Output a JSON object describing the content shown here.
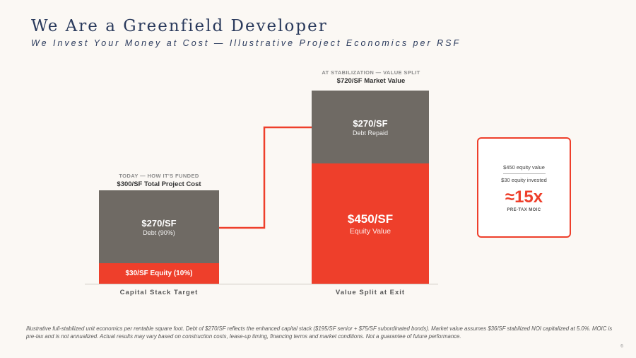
{
  "header": {
    "title": "We Are a Greenfield Developer",
    "subtitle": "We Invest Your Money at Cost — Illustrative Project Economics per RSF"
  },
  "left": {
    "kicker": "TODAY — HOW IT'S FUNDED",
    "heading": "$300/SF Total Project Cost",
    "debt_value": "$270/SF",
    "debt_label": "Debt (90%)",
    "equity_label": "$30/SF Equity (10%)",
    "axis_label": "Capital Stack Target"
  },
  "right": {
    "kicker": "AT STABILIZATION — VALUE SPLIT",
    "heading": "$720/SF Market Value",
    "debt_value": "$270/SF",
    "debt_label": "Debt Repaid",
    "equity_value": "$450/SF",
    "equity_label": "Equity Value",
    "axis_label": "Value Split at Exit"
  },
  "moic": {
    "numerator": "$450 equity value",
    "denominator": "$30 equity invested",
    "multiple": "≈15x",
    "label": "PRE-TAX MOIC"
  },
  "chart_data": {
    "type": "bar",
    "stacked": true,
    "categories": [
      "Capital Stack Target",
      "Value Split at Exit"
    ],
    "series": [
      {
        "name": "Debt",
        "values": [
          270,
          270
        ]
      },
      {
        "name": "Equity",
        "values": [
          30,
          450
        ]
      }
    ],
    "colors": {
      "debt": "#6f6a64",
      "equity": "#ee3f2b",
      "connector": "#ee3f2b"
    }
  },
  "footnote": "Illustrative full-stabilized unit economics per rentable square foot. Debt of $270/SF reflects the enhanced capital stack ($195/SF senior + $75/SF subordinated bonds). Market value assumes $36/SF stabilized NOI capitalized at 5.0%. MOIC is pre-tax and is not annualized. Actual results may vary based on construction costs, lease-up timing, financing terms and market conditions. Not a guarantee of future performance.",
  "page_number": "6"
}
